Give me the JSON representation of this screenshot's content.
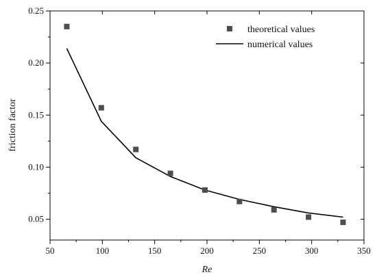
{
  "chart_data": {
    "type": "scatter",
    "title": "",
    "xlabel": "Re",
    "ylabel": "friction factor",
    "xlim": [
      50,
      350
    ],
    "ylim": [
      0.03,
      0.25
    ],
    "x_ticks": [
      50,
      100,
      150,
      200,
      250,
      300,
      350
    ],
    "y_ticks": [
      0.05,
      0.1,
      0.15,
      0.2,
      0.25
    ],
    "x_tick_labels": [
      "50",
      "100",
      "150",
      "200",
      "250",
      "300",
      "350"
    ],
    "y_tick_labels": [
      "0.05",
      "0.10",
      "0.15",
      "0.20",
      "0.25"
    ],
    "legend_position": "top-right",
    "grid": false,
    "series": [
      {
        "name": "theoretical values",
        "type": "scatter",
        "marker": "square",
        "color": "#4d4d4d",
        "x": [
          66,
          99,
          132,
          165,
          198,
          231,
          264,
          297,
          330
        ],
        "y": [
          0.235,
          0.157,
          0.117,
          0.094,
          0.078,
          0.067,
          0.059,
          0.052,
          0.047
        ]
      },
      {
        "name": "numerical values",
        "type": "line",
        "color": "#000000",
        "x": [
          66,
          99,
          132,
          165,
          198,
          231,
          264,
          297,
          330
        ],
        "y": [
          0.214,
          0.144,
          0.109,
          0.091,
          0.078,
          0.069,
          0.062,
          0.056,
          0.052
        ]
      }
    ]
  }
}
